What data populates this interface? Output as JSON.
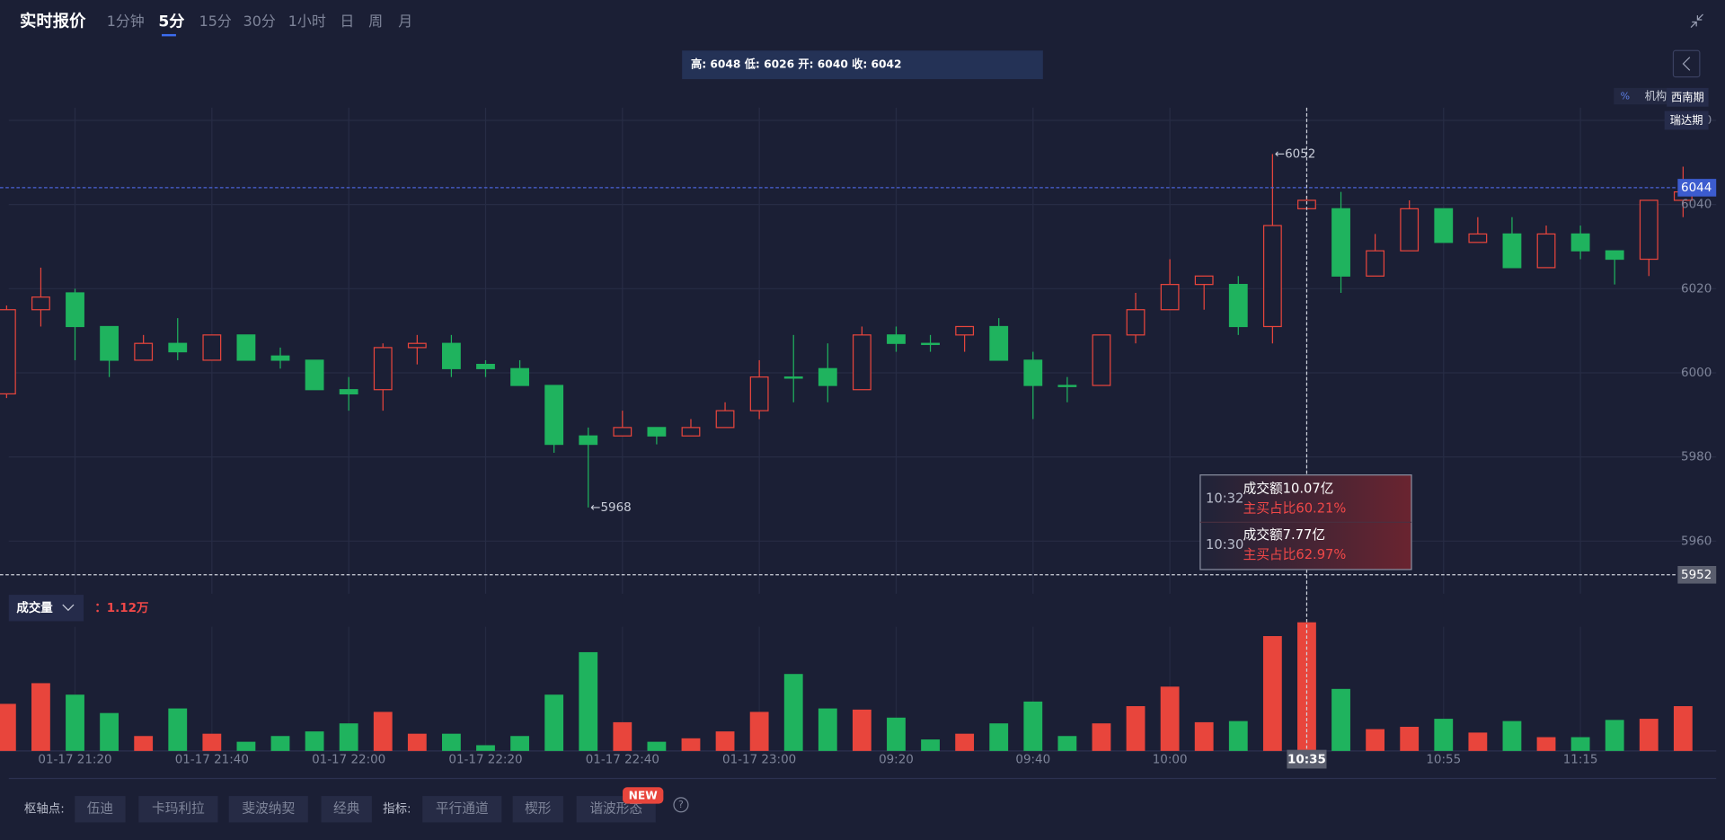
{
  "header": {
    "title": "实时报价",
    "tabs": [
      "1分钟",
      "5分",
      "15分",
      "30分",
      "1小时",
      "日",
      "周",
      "月"
    ],
    "active_tab": "5分",
    "ohlc_info": "高: 6048 低: 6026 开: 6040 收: 6042"
  },
  "overlay_tags": [
    "机构",
    "西南期",
    "瑞达期"
  ],
  "chart_data": {
    "type": "candlestick",
    "categories": [
      null,
      null,
      "01-17 21:20",
      null,
      null,
      null,
      "01-17 21:40",
      null,
      null,
      null,
      "01-17 22:00",
      null,
      null,
      null,
      "01-17 22:20",
      null,
      null,
      null,
      "01-17 22:40",
      null,
      null,
      null,
      "01-17 23:00",
      null,
      null,
      null,
      "09:20",
      null,
      null,
      null,
      "09:40",
      null,
      null,
      null,
      "10:00",
      null,
      null,
      null,
      "10:35",
      null,
      null,
      null,
      "10:55",
      null,
      null,
      null,
      "11:15",
      null,
      null,
      null
    ],
    "open": [
      5995,
      6015,
      6019,
      6011,
      6003,
      6007,
      6003,
      6009,
      6004,
      6003,
      5996,
      5996,
      6006,
      6007,
      6002,
      6001,
      5997,
      5985,
      5985,
      5987,
      5985,
      5987,
      5991,
      5999,
      6001,
      5996,
      6009,
      6007,
      6009,
      6011,
      6003,
      5997,
      5997,
      6009,
      6015,
      6021,
      6021,
      6011,
      6039,
      6039,
      6023,
      6029,
      6039,
      6031,
      6033,
      6025,
      6033,
      6029,
      6027,
      6041
    ],
    "high": [
      6016,
      6025,
      6020,
      6011,
      6009,
      6013,
      6009,
      6009,
      6006,
      6003,
      5999,
      6007,
      6009,
      6009,
      6003,
      6003,
      5997,
      5987,
      5991,
      5987,
      5989,
      5993,
      6003,
      6009,
      6007,
      6011,
      6011,
      6009,
      6011,
      6013,
      6005,
      5999,
      6009,
      6019,
      6027,
      6023,
      6023,
      6052,
      6042,
      6043,
      6033,
      6041,
      6039,
      6037,
      6037,
      6035,
      6035,
      6029,
      6041,
      6049
    ],
    "low": [
      5994,
      6011,
      6003,
      5999,
      6003,
      6003,
      6003,
      6003,
      6001,
      5996,
      5991,
      5991,
      6002,
      5999,
      5999,
      5997,
      5981,
      5968,
      5985,
      5983,
      5985,
      5987,
      5989,
      5993,
      5993,
      5996,
      6005,
      6005,
      6005,
      6003,
      5989,
      5993,
      5997,
      6007,
      6015,
      6015,
      6009,
      6007,
      6039,
      6019,
      6023,
      6029,
      6031,
      6031,
      6025,
      6025,
      6027,
      6021,
      6023,
      6037
    ],
    "close": [
      6015,
      6018,
      6011,
      6003,
      6007,
      6005,
      6009,
      6003,
      6003,
      5996,
      5995,
      6006,
      6007,
      6001,
      6001,
      5997,
      5983,
      5983,
      5987,
      5985,
      5987,
      5991,
      5999,
      5999,
      5997,
      6009,
      6007,
      6007,
      6011,
      6003,
      5997,
      5997,
      6009,
      6015,
      6021,
      6023,
      6011,
      6035,
      6041,
      6023,
      6029,
      6039,
      6031,
      6033,
      6025,
      6033,
      6029,
      6027,
      6041,
      6043
    ],
    "volume": [
      4100,
      5900,
      4900,
      3300,
      1300,
      3700,
      1500,
      800,
      1300,
      1700,
      2400,
      3400,
      1500,
      1500,
      500,
      1300,
      4900,
      8600,
      2500,
      800,
      1100,
      1700,
      3400,
      6700,
      3700,
      3600,
      2900,
      1000,
      1500,
      2400,
      4300,
      1300,
      2400,
      3900,
      5600,
      2500,
      2600,
      10000,
      11200,
      5400,
      1900,
      2100,
      2800,
      1600,
      2600,
      1200,
      1200,
      2700,
      2800,
      3900
    ],
    "up_color": "#e8453c",
    "down_color": "#1fb35e",
    "ylim": [
      5947.5,
      6063
    ],
    "yticks": [
      5960,
      5980,
      6000,
      6020,
      6040,
      6060
    ],
    "grid": true,
    "max_annotation": {
      "value": 6052,
      "label": "←6052"
    },
    "min_annotation": {
      "value": 5968,
      "label": "←5968"
    },
    "last_price": 6044,
    "crosshair": {
      "x": "10:35",
      "y": 5952
    },
    "volume_label": "成交量",
    "volume_readout": "：1.12万"
  },
  "tooltip": {
    "rows": [
      {
        "time": "10:32",
        "amount": "成交额10.07亿",
        "buy_ratio": "主买占比60.21%"
      },
      {
        "time": "10:30",
        "amount": "成交额7.77亿",
        "buy_ratio": "主买占比62.97%"
      }
    ]
  },
  "toolbar": {
    "pivot_label": "枢轴点:",
    "pivot_buttons": [
      "伍迪",
      "卡玛利拉",
      "斐波纳契",
      "经典"
    ],
    "indicator_label": "指标:",
    "indicator_buttons": [
      "平行通道",
      "楔形",
      "谐波形态"
    ],
    "badge": "NEW",
    "help": "?"
  }
}
